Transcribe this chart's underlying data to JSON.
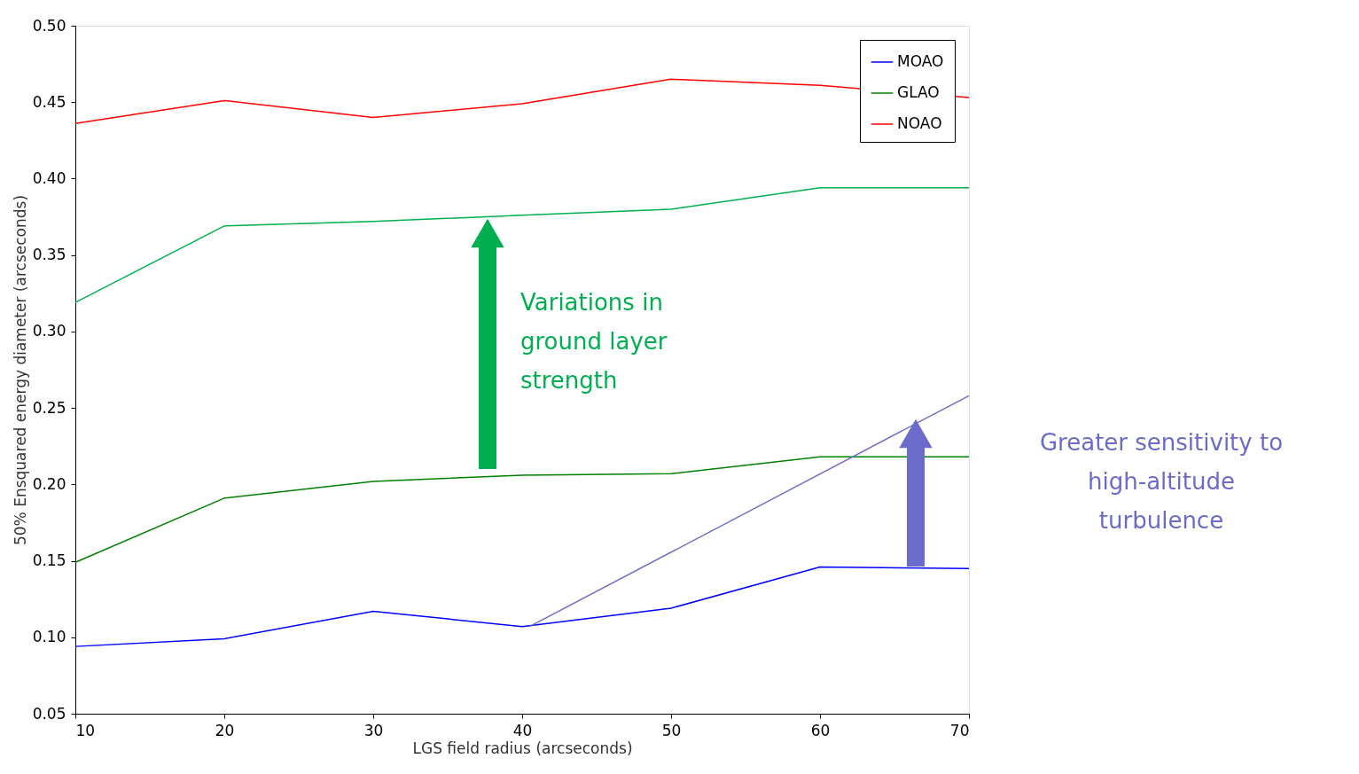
{
  "chart_data": {
    "type": "line",
    "xlabel": "LGS field radius (arcseconds)",
    "ylabel": "50% Ensquared energy diameter (arcseconds)",
    "x": [
      10,
      20,
      30,
      40,
      50,
      60,
      70
    ],
    "series": [
      {
        "name": "MOAO",
        "color": "#0000ff",
        "values": [
          0.094,
          0.099,
          0.117,
          0.107,
          0.119,
          0.146,
          0.145
        ]
      },
      {
        "name": "GLAO",
        "color": "#008000",
        "values": [
          0.149,
          0.191,
          0.202,
          0.206,
          0.207,
          0.218,
          0.218
        ]
      },
      {
        "color": "#00b050",
        "values": [
          0.319,
          0.369,
          0.372,
          0.376,
          0.38,
          0.394,
          0.394
        ]
      },
      {
        "name": "NOAO",
        "color": "#ff0000",
        "values": [
          0.436,
          0.451,
          0.44,
          0.449,
          0.465,
          0.461,
          0.453
        ]
      },
      {
        "type": "line",
        "color": "#6b6bcc",
        "x": [
          40.5,
          70
        ],
        "values": [
          0.107,
          0.258
        ]
      }
    ],
    "xlim": [
      10,
      70
    ],
    "xticks": [
      10,
      20,
      30,
      40,
      50,
      60,
      70
    ],
    "ylim": [
      0.05,
      0.5
    ],
    "yticks": [
      0.05,
      {
        "value": 0.1,
        "label": "0.10"
      },
      0.15,
      {
        "value": 0.2,
        "label": "0.20"
      },
      0.25,
      {
        "value": 0.3,
        "label": "0.30"
      },
      0.35,
      {
        "value": 0.4,
        "label": "0.40"
      },
      0.45,
      {
        "value": 0.5,
        "label": "0.50"
      }
    ],
    "grid": false,
    "legend": "top right",
    "marker": "none",
    "line_style": "solid",
    "annotations": [
      "Variations in\nground layer\nstrength",
      "Greater sensitivity to\nhigh-altitude\nturbulence"
    ]
  }
}
